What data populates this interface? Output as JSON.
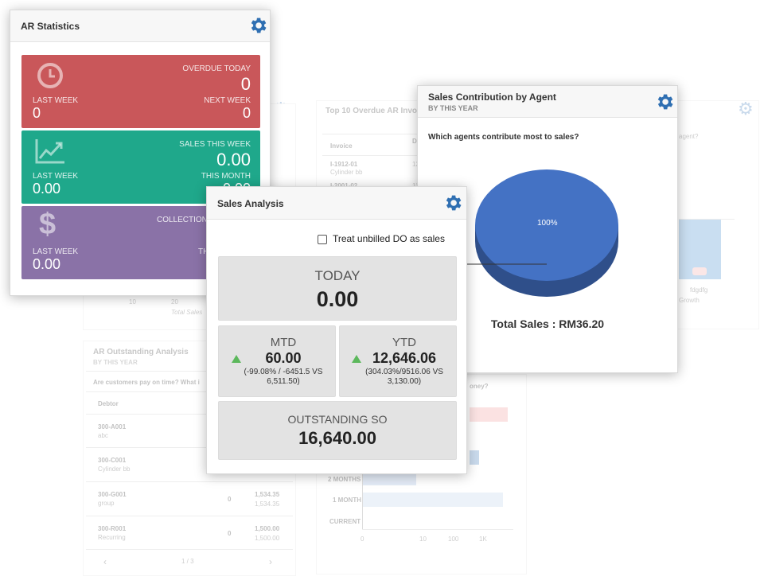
{
  "background": {
    "top10_title": "Top 10 Overdue AR Invo",
    "top10_col_invoice": "Invoice",
    "top10_col_d": "D",
    "top10_rows": [
      {
        "invoice": "I-1912-01",
        "sub": "Cylinder bb",
        "d": "12"
      },
      {
        "invoice": "I-2001-02",
        "sub": "",
        "d": "12"
      }
    ],
    "agent_question_partial": "agent?",
    "chart_labels": [
      "fdgdfg",
      "Growth"
    ],
    "outstanding_title": "AR Outstanding Analysis",
    "outstanding_sub": "BY THIS YEAR",
    "outstanding_question": "Are customers pay on time? What i",
    "money_question_partial": "oney?",
    "debtor_col": "Debtor",
    "debtors": [
      {
        "code": "300-A001",
        "name": "abc",
        "count": "",
        "v1": "",
        "v2": ""
      },
      {
        "code": "300-C001",
        "name": "Cylinder bb",
        "count": "",
        "v1": "",
        "v2": ""
      },
      {
        "code": "300-G001",
        "name": "group",
        "count": "0",
        "v1": "1,534.35",
        "v2": "1,534.35"
      },
      {
        "code": "300-R001",
        "name": "Recurring",
        "count": "0",
        "v1": "1,500.00",
        "v2": "1,500.00"
      }
    ],
    "pager": "1 / 3",
    "aging_labels": [
      "2 MONTHS",
      "1 MONTH",
      "CURRENT"
    ],
    "axis_ticks": [
      "0",
      "10",
      "100",
      "1K"
    ],
    "left_ticks": [
      "10",
      "20"
    ],
    "left_label": "Total Sales"
  },
  "ar_stats": {
    "title": "AR Statistics",
    "tiles": [
      {
        "top_label": "OVERDUE TODAY",
        "top_value": "0",
        "left_label": "LAST WEEK",
        "left_value": "0",
        "right_label": "NEXT WEEK",
        "right_value": "0",
        "icon": "clock-icon",
        "color": "#c9575a"
      },
      {
        "top_label": "SALES THIS WEEK",
        "top_value": "0.00",
        "left_label": "LAST WEEK",
        "left_value": "0.00",
        "right_label": "THIS MONTH",
        "right_value": "0.00",
        "icon": "trend-chart-icon",
        "color": "#1fa88b"
      },
      {
        "top_label": "COLLECTION",
        "top_value": "",
        "left_label": "LAST WEEK",
        "left_value": "0.00",
        "right_label": "TH",
        "right_value": "",
        "icon": "dollar-icon",
        "color": "#8a72a7"
      }
    ]
  },
  "sales_contribution": {
    "title": "Sales Contribution by Agent",
    "subtitle": "BY THIS YEAR",
    "question": "Which agents contribute most to sales?",
    "pie_label": "100%",
    "total": "Total Sales : RM36.20",
    "pie_color": "#4472c4"
  },
  "sales_analysis": {
    "title": "Sales Analysis",
    "checkbox_label": "Treat unbilled DO as sales",
    "today_label": "TODAY",
    "today_value": "0.00",
    "mtd_label": "MTD",
    "mtd_value": "60.00",
    "mtd_note_1": "(-99.08% / -6451.5 VS",
    "mtd_note_2": "6,511.50)",
    "ytd_label": "YTD",
    "ytd_value": "12,646.06",
    "ytd_note_1": "(304.03%/9516.06 VS",
    "ytd_note_2": "3,130.00)",
    "outstanding_label": "OUTSTANDING SO",
    "outstanding_value": "16,640.00",
    "up_color": "#5cb85c"
  }
}
